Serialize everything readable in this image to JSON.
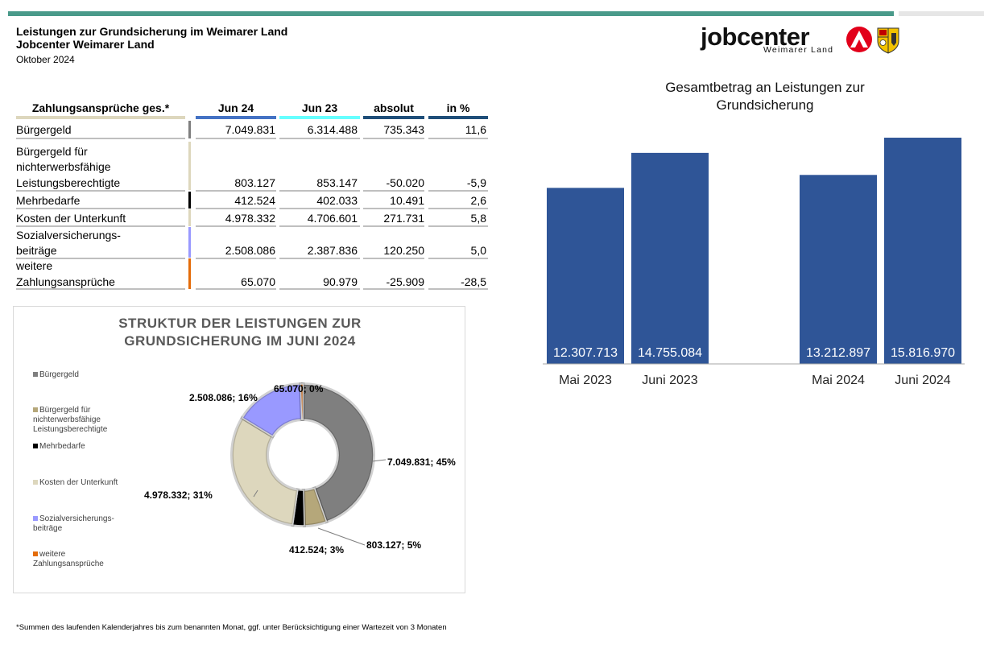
{
  "header": {
    "line1": "Leistungen zur Grundsicherung im Weimarer Land",
    "line2": "Jobcenter Weimarer Land",
    "date": "Oktober 2024"
  },
  "logo": {
    "word": "jobcenter",
    "sub": "Weimarer Land"
  },
  "colors": {
    "teal": "#4a9a8a",
    "barBlue": "#2f5597",
    "gray": "#7f7f7f",
    "tan": "#b5a77a",
    "black": "#000000",
    "beige": "#ddd7bd",
    "lavender": "#9999ff",
    "orange": "#e46c0a"
  },
  "table": {
    "headers": [
      "Zahlungsansprüche ges.*",
      "Jun 24",
      "Jun 23",
      "absolut",
      "in %"
    ],
    "rows": [
      {
        "label": [
          "Bürgergeld"
        ],
        "jun24": "7.049.831",
        "jun23": "6.314.488",
        "absolut": "735.343",
        "pct": "11,6"
      },
      {
        "label": [
          "Bürgergeld für",
          "nichterwerbsfähige",
          "Leistungsberechtigte"
        ],
        "jun24": "803.127",
        "jun23": "853.147",
        "absolut": "-50.020",
        "pct": "-5,9"
      },
      {
        "label": [
          "Mehrbedarfe"
        ],
        "jun24": "412.524",
        "jun23": "402.033",
        "absolut": "10.491",
        "pct": "2,6"
      },
      {
        "label": [
          "Kosten der Unterkunft"
        ],
        "jun24": "4.978.332",
        "jun23": "4.706.601",
        "absolut": "271.731",
        "pct": "5,8"
      },
      {
        "label": [
          "Sozialversicherungs-",
          "beiträge"
        ],
        "jun24": "2.508.086",
        "jun23": "2.387.836",
        "absolut": "120.250",
        "pct": "5,0"
      },
      {
        "label": [
          "weitere",
          "Zahlungsansprüche"
        ],
        "jun24": "65.070",
        "jun23": "90.979",
        "absolut": "-25.909",
        "pct": "-28,5"
      }
    ]
  },
  "chart_data": [
    {
      "type": "pie",
      "title": "STRUKTUR DER LEISTUNGEN ZUR GRUNDSICHERUNG IM JUNI 2024",
      "title_lines": [
        "STRUKTUR DER LEISTUNGEN ZUR",
        "GRUNDSICHERUNG IM JUNI 2024"
      ],
      "categories": [
        "Bürgergeld",
        "Bürgergeld für nichterwerbsfähige Leistungsberechtigte",
        "Mehrbedarfe",
        "Kosten der Unterkunft",
        "Sozialversicherungs-beiträge",
        "weitere Zahlungsansprüche"
      ],
      "legend_lines": [
        [
          "Bürgergeld"
        ],
        [
          "Bürgergeld für",
          "nichterwerbsfähige",
          "Leistungsberechtigte"
        ],
        [
          "Mehrbedarfe"
        ],
        [
          "Kosten der Unterkunft"
        ],
        [
          "Sozialversicherungs-",
          "beiträge"
        ],
        [
          "weitere",
          "Zahlungsansprüche"
        ]
      ],
      "values": [
        7049831,
        803127,
        412524,
        4978332,
        2508086,
        65070
      ],
      "data_labels": [
        "7.049.831; 45%",
        "803.127; 5%",
        "412.524; 3%",
        "4.978.332; 31%",
        "2.508.086; 16%",
        "65.070; 0%"
      ],
      "legend": "left"
    },
    {
      "type": "bar",
      "title": "Gesamtbetrag an Leistungen zur Grundsicherung",
      "title_lines": [
        "Gesamtbetrag an Leistungen zur",
        "Grundsicherung"
      ],
      "categories": [
        "Mai 2023",
        "Juni 2023",
        "Mai 2024",
        "Juni 2024"
      ],
      "values": [
        12307713,
        14755084,
        13212897,
        15816970
      ],
      "data_labels": [
        "12.307.713",
        "14.755.084",
        "13.212.897",
        "15.816.970"
      ],
      "ylim": [
        0,
        17000000
      ],
      "grid": false
    }
  ],
  "footnote": "*Summen des laufenden Kalenderjahres bis zum benannten Monat, ggf. unter Berücksichtigung einer Wartezeit von 3 Monaten"
}
